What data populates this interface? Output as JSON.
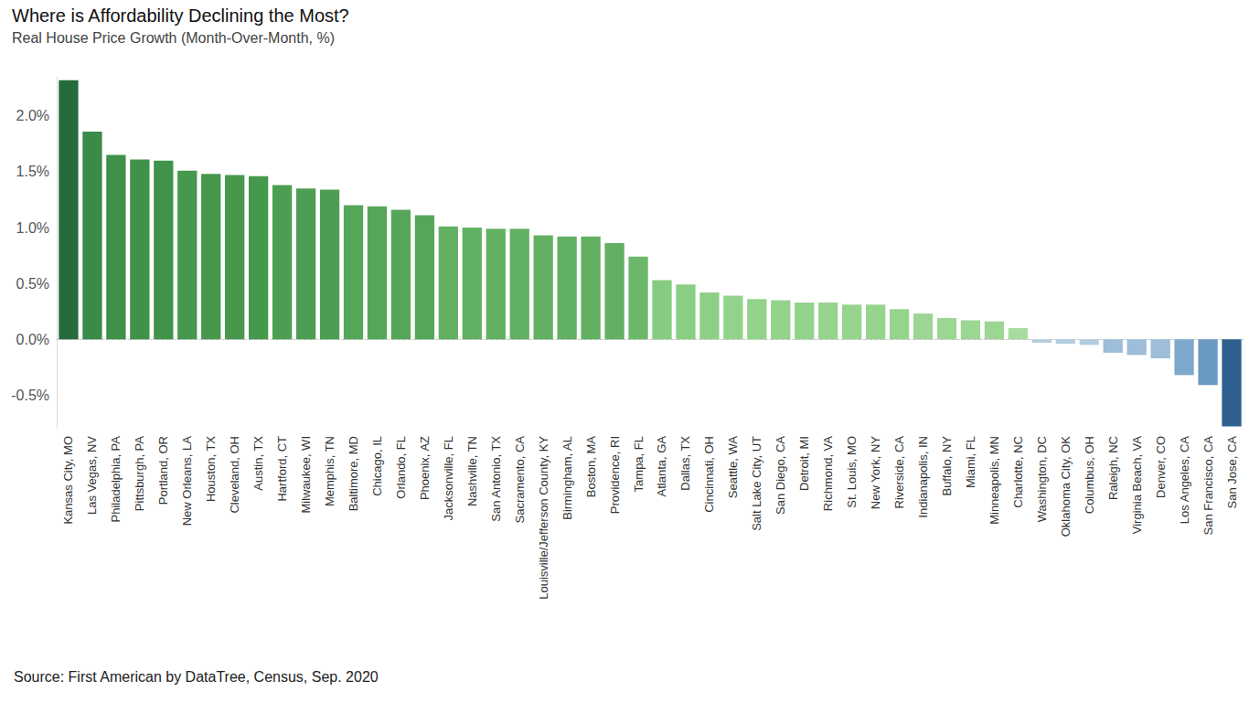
{
  "chart_data": {
    "type": "bar",
    "title": "Where is Affordability Declining the Most?",
    "subtitle": "Real House Price Growth (Month-Over-Month, %)",
    "annotations": [
      "Source: First American by DataTree, Census, Sep. 2020"
    ],
    "categories": [
      "Kansas City, MO",
      "Las Vegas, NV",
      "Philadelphia, PA",
      "Pittsburgh, PA",
      "Portland, OR",
      "New Orleans, LA",
      "Houston, TX",
      "Cleveland, OH",
      "Austin, TX",
      "Hartford, CT",
      "Milwaukee, WI",
      "Memphis, TN",
      "Baltimore, MD",
      "Chicago, IL",
      "Orlando, FL",
      "Phoenix, AZ",
      "Jacksonville, FL",
      "Nashville, TN",
      "San Antonio, TX",
      "Sacramento, CA",
      "Louisville/Jefferson County, KY",
      "Birmingham, AL",
      "Boston, MA",
      "Providence, RI",
      "Tampa, FL",
      "Atlanta, GA",
      "Dallas, TX",
      "Cincinnati, OH",
      "Seattle, WA",
      "Salt Lake City, UT",
      "San Diego, CA",
      "Detroit, MI",
      "Richmond, VA",
      "St. Louis, MO",
      "New York, NY",
      "Riverside, CA",
      "Indianapolis, IN",
      "Buffalo, NY",
      "Miami, FL",
      "Minneapolis, MN",
      "Charlotte, NC",
      "Washington, DC",
      "Oklahoma City, OK",
      "Columbus, OH",
      "Raleigh, NC",
      "Virginia Beach, VA",
      "Denver, CO",
      "Los Angeles, CA",
      "San Francisco, CA",
      "San Jose, CA"
    ],
    "values": [
      2.32,
      1.86,
      1.65,
      1.61,
      1.6,
      1.51,
      1.48,
      1.47,
      1.46,
      1.38,
      1.35,
      1.34,
      1.2,
      1.19,
      1.16,
      1.11,
      1.01,
      1.0,
      0.99,
      0.99,
      0.93,
      0.92,
      0.92,
      0.86,
      0.74,
      0.53,
      0.49,
      0.42,
      0.39,
      0.36,
      0.35,
      0.33,
      0.33,
      0.31,
      0.31,
      0.27,
      0.23,
      0.19,
      0.17,
      0.16,
      0.1,
      -0.03,
      -0.04,
      -0.05,
      -0.12,
      -0.14,
      -0.17,
      -0.32,
      -0.41,
      -0.78
    ],
    "colors": [
      "#256b3c",
      "#3a8a48",
      "#3f9149",
      "#40924a",
      "#41934b",
      "#46984d",
      "#46984d",
      "#46984d",
      "#46984d",
      "#4d9e52",
      "#4d9e52",
      "#4d9e52",
      "#56a65a",
      "#56a65a",
      "#56a65a",
      "#56a65a",
      "#62b062",
      "#62b062",
      "#62b062",
      "#62b062",
      "#62b062",
      "#62b062",
      "#62b062",
      "#62b062",
      "#6cb86a",
      "#86cc80",
      "#89ce83",
      "#8ecf87",
      "#93d28b",
      "#93d28b",
      "#93d28b",
      "#93d28b",
      "#96d48e",
      "#96d48e",
      "#96d48e",
      "#96d48e",
      "#9cd693",
      "#9cd693",
      "#9cd693",
      "#9cd693",
      "#a8dc9f",
      "#b3cde0",
      "#b3cde0",
      "#b3cde0",
      "#9dbdd8",
      "#9dbdd8",
      "#9dbdd8",
      "#7ea8cc",
      "#6a99c2",
      "#2f5f8e"
    ],
    "ylim": [
      -0.8,
      2.35
    ],
    "yticks": [
      {
        "value": -0.5,
        "label": "-0.5%"
      },
      {
        "value": 0,
        "label": "0.0%"
      },
      {
        "value": 0.5,
        "label": "0.5%"
      },
      {
        "value": 1,
        "label": "1.0%"
      },
      {
        "value": 1.5,
        "label": "1.5%"
      },
      {
        "value": 2,
        "label": "2.0%"
      }
    ],
    "grid": false
  }
}
